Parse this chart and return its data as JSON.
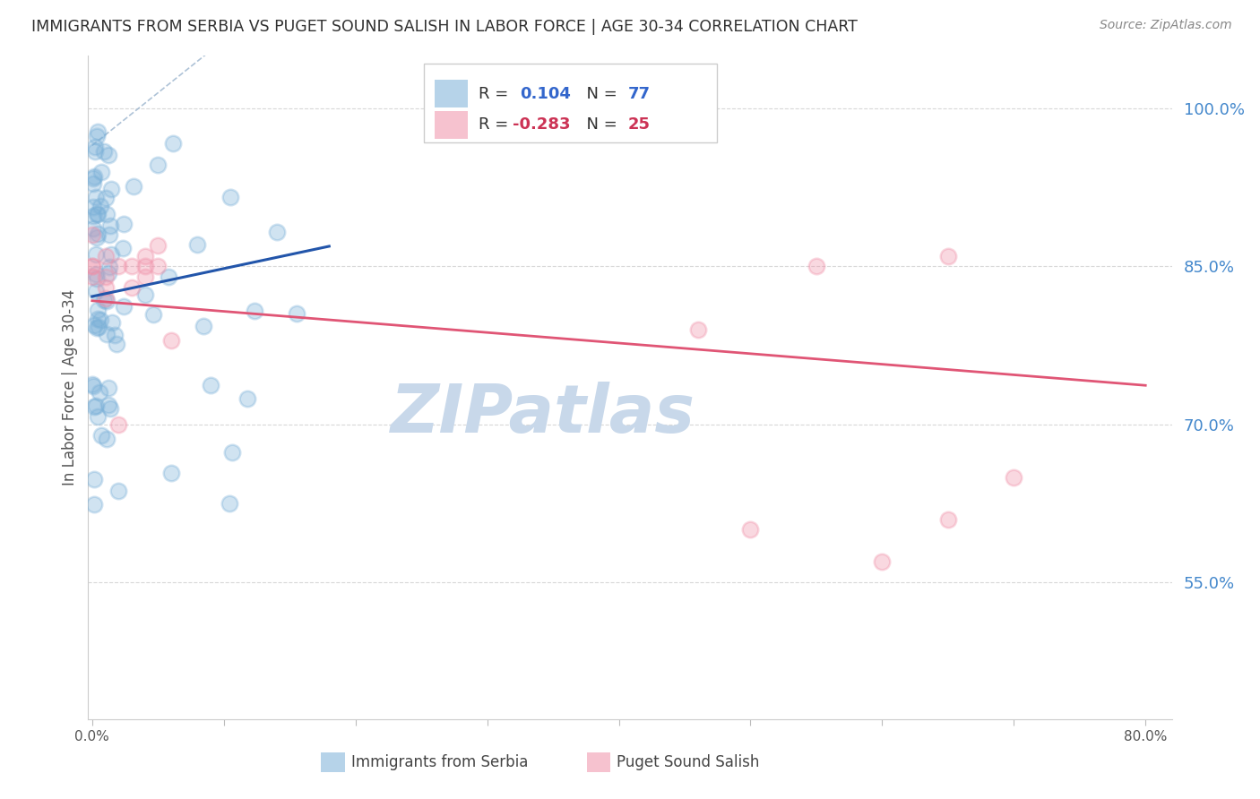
{
  "title": "IMMIGRANTS FROM SERBIA VS PUGET SOUND SALISH IN LABOR FORCE | AGE 30-34 CORRELATION CHART",
  "source": "Source: ZipAtlas.com",
  "ylabel": "In Labor Force | Age 30-34",
  "right_ytick_labels": [
    "55.0%",
    "70.0%",
    "85.0%",
    "100.0%"
  ],
  "right_ytick_values": [
    0.55,
    0.7,
    0.85,
    1.0
  ],
  "xlim": [
    -0.003,
    0.82
  ],
  "ylim": [
    0.42,
    1.05
  ],
  "serbia_color": "#7ab0d8",
  "salish_color": "#f090a8",
  "serbia_r": 0.104,
  "serbia_n": 77,
  "salish_r": -0.283,
  "salish_n": 25,
  "serbia_line_color": "#2255aa",
  "salish_line_color": "#e05575",
  "ref_line_color": "#a0b8d0",
  "watermark": "ZIPatlas",
  "watermark_color": "#c8d8ea",
  "bg_color": "#ffffff",
  "grid_color": "#d8d8d8",
  "title_color": "#303030",
  "right_axis_color": "#4488cc",
  "source_color": "#888888",
  "legend_text_color": "#303030",
  "legend_blue_color": "#3366cc",
  "legend_pink_color": "#cc3355",
  "axis_label_color": "#555555",
  "salish_x": [
    0.0,
    0.0,
    0.0,
    0.0,
    0.01,
    0.01,
    0.01,
    0.01,
    0.02,
    0.02,
    0.03,
    0.03,
    0.04,
    0.04,
    0.04,
    0.05,
    0.05,
    0.06,
    0.46,
    0.5,
    0.55,
    0.6,
    0.65,
    0.65,
    0.7
  ],
  "salish_y": [
    0.85,
    0.84,
    0.88,
    0.85,
    0.83,
    0.82,
    0.84,
    0.86,
    0.7,
    0.85,
    0.83,
    0.85,
    0.84,
    0.86,
    0.85,
    0.87,
    0.85,
    0.78,
    0.79,
    0.6,
    0.85,
    0.57,
    0.86,
    0.61,
    0.65
  ]
}
